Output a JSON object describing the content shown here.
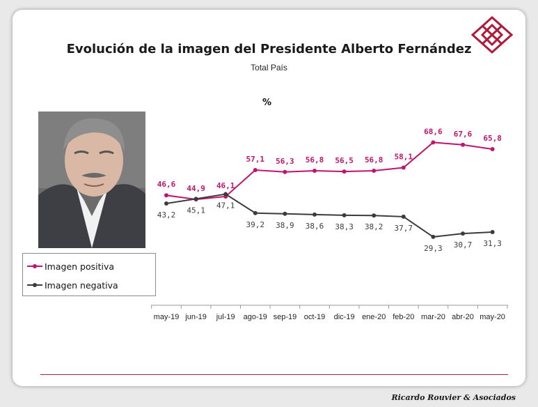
{
  "slide": {
    "title": "Evolución de la imagen del Presidente Alberto Fernández",
    "subtitle": "Total País",
    "unit_label": "%",
    "footer": "Ricardo Rouvier & Asociados"
  },
  "colors": {
    "positive": "#c0146e",
    "negative": "#3b3b3b",
    "logo": "#b0193a",
    "rule": "#9c1e5a"
  },
  "legend": {
    "items": [
      {
        "label": "Imagen positiva",
        "color": "#c0146e"
      },
      {
        "label": "Imagen negativa",
        "color": "#3b3b3b"
      }
    ]
  },
  "chart_data": {
    "type": "line",
    "title": "Evolución de la imagen del Presidente Alberto Fernández",
    "subtitle": "Total País",
    "ylabel": "%",
    "categories": [
      "may-19",
      "jun-19",
      "jul-19",
      "ago-19",
      "sep-19",
      "oct-19",
      "dic-19",
      "ene-20",
      "feb-20",
      "mar-20",
      "abr-20",
      "may-20"
    ],
    "series": [
      {
        "name": "Imagen positiva",
        "color": "#c0146e",
        "values": [
          46.6,
          44.9,
          46.1,
          57.1,
          56.3,
          56.8,
          56.5,
          56.8,
          58.1,
          68.6,
          67.6,
          65.8
        ],
        "labels": [
          "46,6",
          "44,9",
          "46,1",
          "57,1",
          "56,3",
          "56,8",
          "56,5",
          "56,8",
          "58,1",
          "68,6",
          "67,6",
          "65,8"
        ]
      },
      {
        "name": "Imagen negativa",
        "color": "#3b3b3b",
        "values": [
          43.2,
          45.1,
          47.1,
          39.2,
          38.9,
          38.6,
          38.3,
          38.2,
          37.7,
          29.3,
          30.7,
          31.3
        ],
        "labels": [
          "43,2",
          "45,1",
          "47,1",
          "39,2",
          "38,9",
          "38,6",
          "38,3",
          "38,2",
          "37,7",
          "29,3",
          "30,7",
          "31,3"
        ]
      }
    ],
    "ylim": [
      20,
      80
    ],
    "grid": false,
    "legend_position": "left"
  }
}
